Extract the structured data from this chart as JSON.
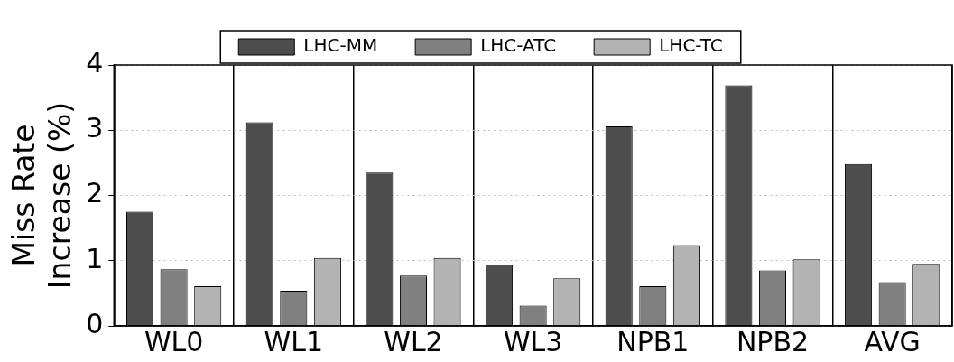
{
  "chart_data": {
    "type": "bar",
    "ylabel": "Miss Rate\nIncrease (%)",
    "categories": [
      "WL0",
      "WL1",
      "WL2",
      "WL3",
      "NPB1",
      "NPB2",
      "AVG"
    ],
    "series": [
      {
        "name": "LHC-MM",
        "color": "#4d4d4d",
        "values": [
          1.75,
          3.12,
          2.35,
          0.94,
          3.06,
          3.69,
          2.48
        ]
      },
      {
        "name": "LHC-ATC",
        "color": "#808080",
        "values": [
          0.87,
          0.54,
          0.77,
          0.31,
          0.61,
          0.85,
          0.67
        ]
      },
      {
        "name": "LHC-TC",
        "color": "#b3b3b3",
        "values": [
          0.61,
          1.04,
          1.04,
          0.73,
          1.24,
          1.02,
          0.95
        ]
      }
    ],
    "ylim": [
      0,
      4
    ],
    "yticks": [
      0,
      1,
      2,
      3,
      4
    ],
    "grid": true,
    "legend": "top"
  }
}
